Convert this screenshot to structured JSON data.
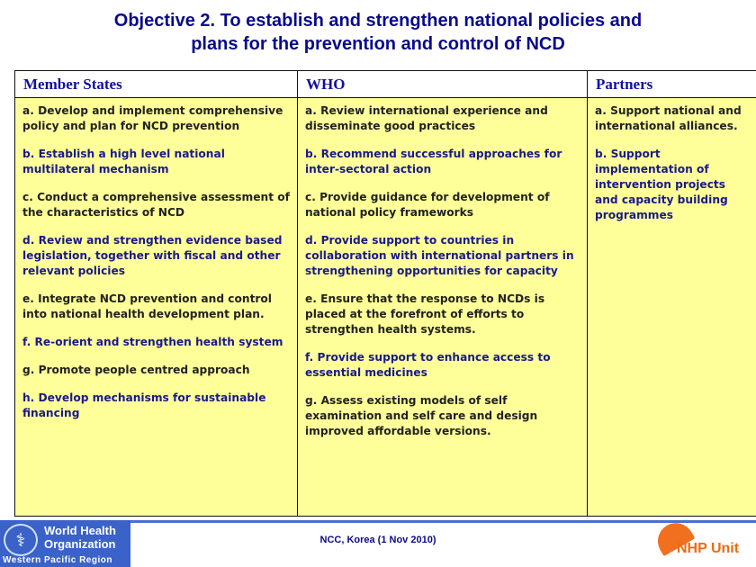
{
  "title": [
    "Objective 2. To establish and strengthen national policies and",
    "plans for the prevention and control of NCD"
  ],
  "columns": [
    {
      "header": "Member States",
      "items": [
        {
          "text": "a. Develop and implement comprehensive policy and plan for NCD prevention",
          "color": "black"
        },
        {
          "text": "b. Establish a high level national multilateral mechanism",
          "color": "navy"
        },
        {
          "text": "c. Conduct a comprehensive assessment of the characteristics of NCD",
          "color": "black"
        },
        {
          "text": "d. Review and strengthen evidence based legislation, together with fiscal and other relevant policies",
          "color": "navy"
        },
        {
          "text": "e. Integrate NCD prevention and control into national health development plan.",
          "color": "black"
        },
        {
          "text": "f. Re-orient and strengthen health system",
          "color": "navy"
        },
        {
          "text": "g. Promote people centred approach",
          "color": "black"
        },
        {
          "text": "h. Develop mechanisms for sustainable financing",
          "color": "navy"
        }
      ]
    },
    {
      "header": "WHO",
      "items": [
        {
          "text": "a. Review international experience and disseminate good practices",
          "color": "black"
        },
        {
          "text": "b. Recommend successful approaches for inter-sectoral action",
          "color": "navy"
        },
        {
          "text": "c. Provide guidance for development of national policy frameworks",
          "color": "black"
        },
        {
          "text": "d. Provide support to countries in collaboration with international partners in strengthening opportunities for capacity",
          "color": "navy"
        },
        {
          "text": "e. Ensure that the response to NCDs is placed at the forefront of efforts to strengthen health systems.",
          "color": "black"
        },
        {
          "text": "f. Provide support to enhance access to essential medicines",
          "color": "navy"
        },
        {
          "text": "g. Assess existing models of self examination and self care and design improved affordable versions.",
          "color": "black"
        }
      ]
    },
    {
      "header": "Partners",
      "items": [
        {
          "text": "a. Support national and international alliances.",
          "color": "black"
        },
        {
          "text": "b. Support implementation of intervention projects and capacity building programmes",
          "color": "navy"
        }
      ]
    }
  ],
  "footer": {
    "who_logo": "World Health Organization",
    "who_region": "Western Pacific Region",
    "caption": "NCC, Korea (1 Nov 2010)",
    "unit_logo": "NHP Unit"
  },
  "colors": {
    "title": "#0a0a8c",
    "cell_bg": "#ffff99",
    "navy_text": "#1a1a8a",
    "who_blue": "#3a62c8",
    "nhp_orange": "#f06a10"
  }
}
